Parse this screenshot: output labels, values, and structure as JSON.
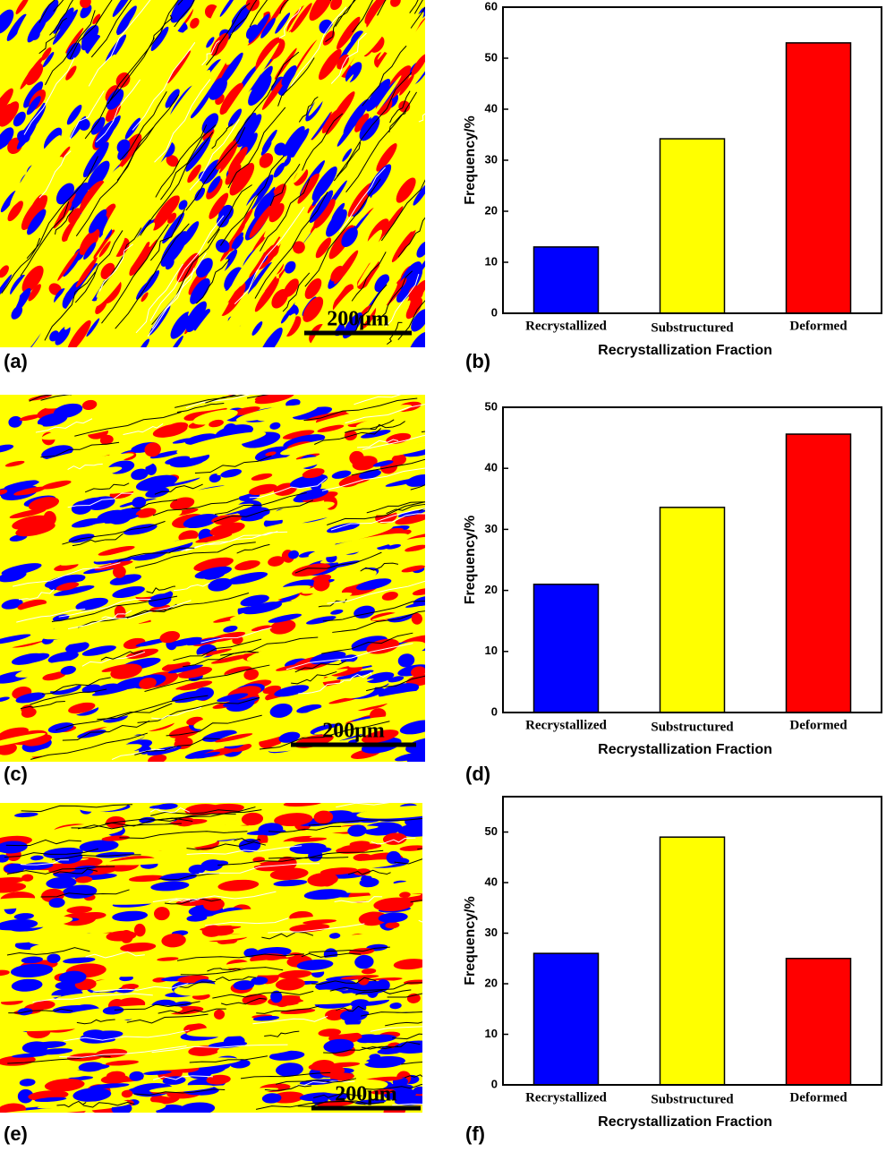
{
  "micrographs": [
    {
      "label": "(a)",
      "scale_bar": "200μm"
    },
    {
      "label": "(c)",
      "scale_bar": "200μm"
    },
    {
      "label": "(e)",
      "scale_bar": "200μm"
    }
  ],
  "chart_data": [
    {
      "type": "bar",
      "panel_label": "(b)",
      "x_label": "Recrystallization Fraction",
      "y_label": "Frequency/%",
      "categories": [
        "Recrystallized",
        "Substructured",
        "Deformed"
      ],
      "values": [
        13,
        34.2,
        53
      ],
      "colors": [
        "#0000ff",
        "#ffff00",
        "#ff0000"
      ],
      "ylim": [
        0,
        60
      ],
      "yticks": [
        0,
        10,
        20,
        30,
        40,
        50,
        60
      ]
    },
    {
      "type": "bar",
      "panel_label": "(d)",
      "x_label": "Recrystallization Fraction",
      "y_label": "Frequency/%",
      "categories": [
        "Recrystallized",
        "Substructured",
        "Deformed"
      ],
      "values": [
        21,
        33.6,
        45.6
      ],
      "colors": [
        "#0000ff",
        "#ffff00",
        "#ff0000"
      ],
      "ylim": [
        0,
        50
      ],
      "yticks": [
        0,
        10,
        20,
        30,
        40,
        50
      ]
    },
    {
      "type": "bar",
      "panel_label": "(f)",
      "x_label": "Recrystallization Fraction",
      "y_label": "Frequency/%",
      "categories": [
        "Recrystallized",
        "Substructured",
        "Deformed"
      ],
      "values": [
        26,
        49,
        25
      ],
      "colors": [
        "#0000ff",
        "#ffff00",
        "#ff0000"
      ],
      "ylim": [
        0,
        57
      ],
      "yticks": [
        0,
        10,
        20,
        30,
        40,
        50
      ]
    }
  ]
}
